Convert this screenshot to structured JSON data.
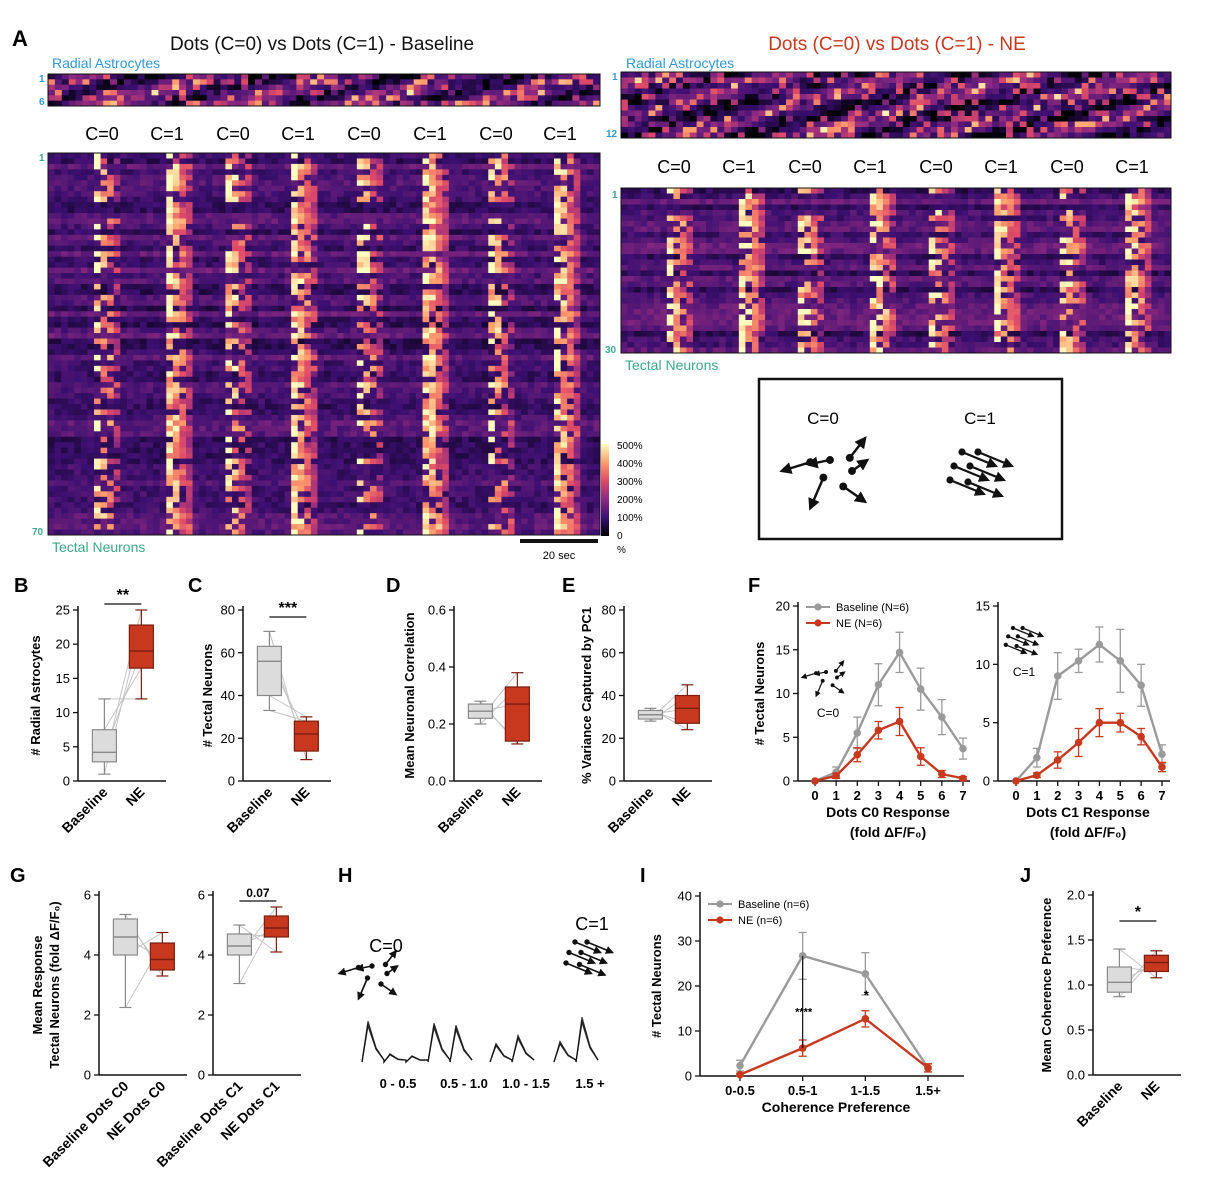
{
  "colors": {
    "baseline": "#9a9a9a",
    "baseline_fill": "#dcdcdc",
    "ne": "#c8381e",
    "ne_fill": "#c8381e",
    "astro_label": "#2f9ad6",
    "neuron_label": "#3aa88a",
    "heatmap": [
      "#000004",
      "#3b0f70",
      "#8c2981",
      "#de4968",
      "#fe9f6d",
      "#fcfdbf"
    ]
  },
  "panels": {
    "A": "A",
    "B": "B",
    "C": "C",
    "D": "D",
    "E": "E",
    "F": "F",
    "G": "G",
    "H": "H",
    "I": "I",
    "J": "J"
  },
  "panelA": {
    "left_title": "Dots (C=0) vs Dots (C=1) - Baseline",
    "right_title": "Dots (C=0) vs Dots (C=1) - NE",
    "astro_label": "Radial Astrocytes",
    "neuron_label": "Tectal Neurons",
    "left_astro_rows": [
      "1",
      "6"
    ],
    "right_astro_rows": [
      "1",
      "12"
    ],
    "left_neuron_rows": [
      "1",
      "70"
    ],
    "right_neuron_rows": [
      "1",
      "30"
    ],
    "conditions": [
      "C=0",
      "C=1",
      "C=0",
      "C=1",
      "C=0",
      "C=1",
      "C=0",
      "C=1"
    ],
    "colorbar_ticks": [
      "500%",
      "400%",
      "300%",
      "200%",
      "100%",
      "0",
      "%"
    ],
    "scale_bar": "20 sec",
    "legend_c0": "C=0",
    "legend_c1": "C=1"
  },
  "chart_data": [
    {
      "panel": "B",
      "type": "box",
      "ylabel": "# Radial Astrocytes",
      "categories": [
        "Baseline",
        "NE"
      ],
      "ylim": [
        0,
        25
      ],
      "yticks": [
        "0",
        "5",
        "10",
        "15",
        "20",
        "25"
      ],
      "boxes": [
        {
          "name": "Baseline",
          "min": 1,
          "q1": 2.8,
          "median": 4.2,
          "q3": 7.5,
          "max": 12
        },
        {
          "name": "NE",
          "min": 12,
          "q1": 16.5,
          "median": 19,
          "q3": 22.8,
          "max": 25
        }
      ],
      "significance": "**"
    },
    {
      "panel": "C",
      "type": "box",
      "ylabel": "# Tectal Neurons",
      "categories": [
        "Baseline",
        "NE"
      ],
      "ylim": [
        0,
        80
      ],
      "yticks": [
        "0",
        "20",
        "40",
        "60",
        "80"
      ],
      "boxes": [
        {
          "name": "Baseline",
          "min": 33,
          "q1": 40,
          "median": 56,
          "q3": 63,
          "max": 70
        },
        {
          "name": "NE",
          "min": 10,
          "q1": 14,
          "median": 22,
          "q3": 28,
          "max": 30
        }
      ],
      "significance": "***"
    },
    {
      "panel": "D",
      "type": "box",
      "ylabel": "Mean Neuronal Correlation",
      "categories": [
        "Baseline",
        "NE"
      ],
      "ylim": [
        0,
        0.6
      ],
      "yticks": [
        "0.0",
        "0.2",
        "0.4",
        "0.6"
      ],
      "boxes": [
        {
          "name": "Baseline",
          "min": 0.2,
          "q1": 0.22,
          "median": 0.245,
          "q3": 0.27,
          "max": 0.28
        },
        {
          "name": "NE",
          "min": 0.13,
          "q1": 0.14,
          "median": 0.27,
          "q3": 0.33,
          "max": 0.38
        }
      ],
      "significance": ""
    },
    {
      "panel": "E",
      "type": "box",
      "ylabel": "% Variance Captured by PC1",
      "categories": [
        "Baseline",
        "NE"
      ],
      "ylim": [
        0,
        80
      ],
      "yticks": [
        "0",
        "20",
        "40",
        "60",
        "80"
      ],
      "boxes": [
        {
          "name": "Baseline",
          "min": 28,
          "q1": 29,
          "median": 31,
          "q3": 33,
          "max": 34
        },
        {
          "name": "NE",
          "min": 24,
          "q1": 27,
          "median": 34,
          "q3": 40,
          "max": 45
        }
      ],
      "significance": ""
    },
    {
      "panel": "F-left",
      "type": "line",
      "xlabel": [
        "Dots C0 Response",
        "(fold ΔF/F₀)"
      ],
      "ylabel": "# Tectal Neurons",
      "x": [
        0,
        1,
        2,
        3,
        4,
        5,
        6,
        7
      ],
      "xticks": [
        "0",
        "1",
        "2",
        "3",
        "4",
        "5",
        "6",
        "7"
      ],
      "ylim": [
        0,
        20
      ],
      "yticks": [
        "0",
        "5",
        "10",
        "15",
        "20"
      ],
      "series": [
        {
          "name": "Baseline (N=6)",
          "values": [
            0,
            1,
            5.5,
            11,
            14.7,
            10.5,
            7.3,
            3.7
          ],
          "err": [
            0,
            0.6,
            1.8,
            2.4,
            2.3,
            2.4,
            2.0,
            1.2
          ]
        },
        {
          "name": "NE (N=6)",
          "values": [
            0,
            0.6,
            3,
            5.8,
            6.8,
            2.8,
            0.8,
            0.3
          ],
          "err": [
            0,
            0.3,
            0.8,
            1.0,
            1.6,
            1.0,
            0.4,
            0.2
          ]
        }
      ],
      "inset_label": "C=0"
    },
    {
      "panel": "F-right",
      "type": "line",
      "xlabel": [
        "Dots C1 Response",
        "(fold ΔF/F₀)"
      ],
      "ylabel": "",
      "x": [
        0,
        1,
        2,
        3,
        4,
        5,
        6,
        7
      ],
      "xticks": [
        "0",
        "1",
        "2",
        "3",
        "4",
        "5",
        "6",
        "7"
      ],
      "ylim": [
        0,
        15
      ],
      "yticks": [
        "0",
        "5",
        "10",
        "15"
      ],
      "series": [
        {
          "name": "Baseline (N=6)",
          "values": [
            0,
            2,
            9,
            10.3,
            11.7,
            10.3,
            8.2,
            2.3
          ],
          "err": [
            0,
            0.8,
            2.0,
            1.0,
            1.5,
            2.7,
            1.8,
            0.8
          ]
        },
        {
          "name": "NE (N=6)",
          "values": [
            0,
            0.5,
            1.8,
            3.3,
            5,
            5,
            3.8,
            1.2
          ],
          "err": [
            0,
            0.2,
            0.7,
            1.2,
            1.2,
            0.8,
            0.7,
            0.4
          ]
        }
      ],
      "inset_label": "C=1"
    },
    {
      "panel": "G-left",
      "type": "box",
      "ylabel": [
        "Mean Response",
        "Tectal Neurons (fold ΔF/F₀)"
      ],
      "categories": [
        "Baseline Dots C0",
        "NE Dots C0"
      ],
      "ylim": [
        0,
        6
      ],
      "yticks": [
        "0",
        "2",
        "4",
        "6"
      ],
      "boxes": [
        {
          "name": "Baseline Dots C0",
          "min": 2.25,
          "q1": 4.0,
          "median": 4.6,
          "q3": 5.2,
          "max": 5.35
        },
        {
          "name": "NE Dots C0",
          "min": 3.3,
          "q1": 3.5,
          "median": 3.85,
          "q3": 4.4,
          "max": 4.75
        }
      ],
      "significance": ""
    },
    {
      "panel": "G-right",
      "type": "box",
      "ylabel": "",
      "categories": [
        "Baseline Dots C1",
        "NE Dots C1"
      ],
      "ylim": [
        0,
        6
      ],
      "yticks": [
        "0",
        "2",
        "4",
        "6"
      ],
      "boxes": [
        {
          "name": "Baseline Dots C1",
          "min": 3.05,
          "q1": 4.0,
          "median": 4.3,
          "q3": 4.7,
          "max": 5.0
        },
        {
          "name": "NE Dots C1",
          "min": 4.1,
          "q1": 4.6,
          "median": 4.9,
          "q3": 5.3,
          "max": 5.6
        }
      ],
      "significance": "0.07"
    },
    {
      "panel": "H",
      "type": "traces",
      "bins": [
        "0 - 0.5",
        "0.5 - 1.0",
        "1.0 - 1.5",
        "1.5 +"
      ],
      "label_c0": "C=0",
      "label_c1": "C=1"
    },
    {
      "panel": "I",
      "type": "line",
      "xlabel": "Coherence Preference",
      "ylabel": "# Tectal Neurons",
      "categories": [
        "0-0.5",
        "0.5-1",
        "1-1.5",
        "1.5+"
      ],
      "ylim": [
        0,
        40
      ],
      "yticks": [
        "0",
        "10",
        "20",
        "30",
        "40"
      ],
      "series": [
        {
          "name": "Baseline (n=6)",
          "values": [
            2.3,
            26.7,
            22.7,
            1.8
          ],
          "err": [
            1.2,
            5.2,
            4.7,
            0.9
          ]
        },
        {
          "name": "NE (n=6)",
          "values": [
            0.3,
            6.2,
            12.7,
            1.8
          ],
          "err": [
            0.3,
            1.8,
            1.8,
            0.9
          ]
        }
      ],
      "annotations": [
        "****",
        "*"
      ]
    },
    {
      "panel": "J",
      "type": "box",
      "ylabel": "Mean Coherence Preference",
      "categories": [
        "Baseline",
        "NE"
      ],
      "ylim": [
        0,
        2
      ],
      "yticks": [
        "0.0",
        "0.5",
        "1.0",
        "1.5",
        "2.0"
      ],
      "boxes": [
        {
          "name": "Baseline",
          "min": 0.87,
          "q1": 0.92,
          "median": 1.03,
          "q3": 1.2,
          "max": 1.4
        },
        {
          "name": "NE",
          "min": 1.08,
          "q1": 1.15,
          "median": 1.25,
          "q3": 1.33,
          "max": 1.38
        }
      ],
      "significance": "*"
    }
  ]
}
